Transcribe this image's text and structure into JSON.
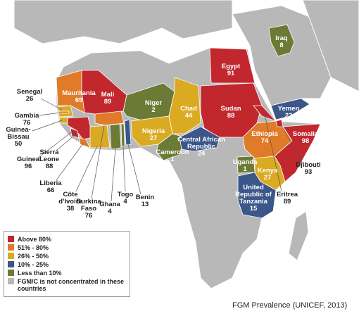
{
  "countries": [
    {
      "name": "Egypt",
      "value": 91,
      "color": "#c1272d"
    },
    {
      "name": "Sudan",
      "value": 88,
      "color": "#c1272d"
    },
    {
      "name": "Mali",
      "value": 89,
      "color": "#c1272d"
    },
    {
      "name": "Mauritania",
      "value": 69,
      "color": "#e07b29"
    },
    {
      "name": "Niger",
      "value": 2,
      "color": "#6b7a34"
    },
    {
      "name": "Chad",
      "value": 44,
      "color": "#d9aa22"
    },
    {
      "name": "Nigeria",
      "value": 27,
      "color": "#d9aa22"
    },
    {
      "name": "Cameroon",
      "value": 1,
      "color": "#6b7a34"
    },
    {
      "name": "Central African Republic",
      "value": 24,
      "color": "#3b5688"
    },
    {
      "name": "Ethiopia",
      "value": 74,
      "color": "#e07b29"
    },
    {
      "name": "Somalia",
      "value": 98,
      "color": "#c1272d"
    },
    {
      "name": "Djibouti",
      "value": 93,
      "color": "#c1272d"
    },
    {
      "name": "Eritrea",
      "value": 89,
      "color": "#c1272d"
    },
    {
      "name": "Kenya",
      "value": 27,
      "color": "#d9aa22"
    },
    {
      "name": "Uganda",
      "value": 1,
      "color": "#6b7a34"
    },
    {
      "name": "United Republic of Tanzania",
      "value": 15,
      "color": "#3b5688"
    },
    {
      "name": "Yemen",
      "value": 23,
      "color": "#3b5688"
    },
    {
      "name": "Iraq",
      "value": 8,
      "color": "#6b7a34"
    },
    {
      "name": "Senegal",
      "value": 26,
      "color": "#d9aa22"
    },
    {
      "name": "Gambia",
      "value": 76,
      "color": "#e07b29"
    },
    {
      "name": "Guinea-Bissau",
      "value": 50,
      "color": "#d9aa22"
    },
    {
      "name": "Guinea",
      "value": 96,
      "color": "#c1272d"
    },
    {
      "name": "Sierra Leone",
      "value": 88,
      "color": "#c1272d"
    },
    {
      "name": "Liberia",
      "value": 66,
      "color": "#e07b29"
    },
    {
      "name": "Côte d'Ivoire",
      "value": 38,
      "color": "#d9aa22"
    },
    {
      "name": "Burkina Faso",
      "value": 76,
      "color": "#e07b29"
    },
    {
      "name": "Ghana",
      "value": 4,
      "color": "#6b7a34"
    },
    {
      "name": "Togo",
      "value": 4,
      "color": "#6b7a34"
    },
    {
      "name": "Benin",
      "value": 13,
      "color": "#3b5688"
    }
  ],
  "legend": [
    {
      "label": "Above 80%",
      "color": "#c1272d"
    },
    {
      "label": "51% - 80%",
      "color": "#e07b29"
    },
    {
      "label": "26% - 50%",
      "color": "#d9aa22"
    },
    {
      "label": "10% - 25%",
      "color": "#3b5688"
    },
    {
      "label": "Less than 10%",
      "color": "#6b7a34"
    },
    {
      "label": "FGM/C is not concentrated in these countries",
      "color": "#b8b8b8"
    }
  ],
  "caption": "FGM Prevalence (UNICEF, 2013)"
}
